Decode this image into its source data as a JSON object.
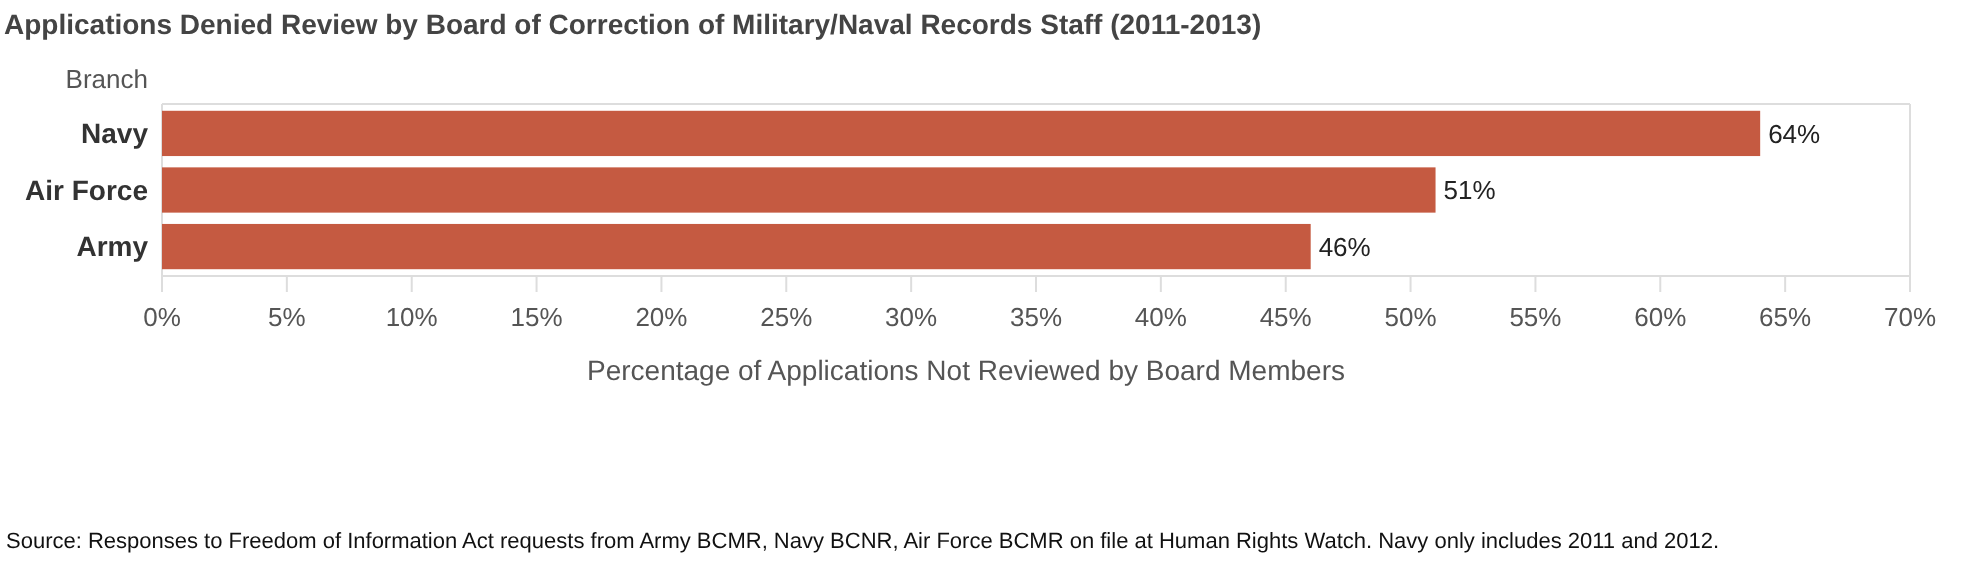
{
  "chart_data": {
    "type": "bar",
    "orientation": "horizontal",
    "title": "Applications Denied Review by Board of Correction of Military/Naval Records Staff (2011-2013)",
    "ylabel": "Branch",
    "xlabel": "Percentage of Applications Not Reviewed by Board Members",
    "categories": [
      "Navy",
      "Air Force",
      "Army"
    ],
    "series": [
      {
        "color": "#c55a41",
        "values": [
          64,
          51,
          46
        ],
        "value_labels": [
          "64%",
          "51%",
          "46%"
        ]
      }
    ],
    "xlim": [
      0,
      70
    ],
    "xticks": [
      {
        "value": 0,
        "label": "0%"
      },
      {
        "value": 5,
        "label": "5%"
      },
      {
        "value": 10,
        "label": "10%"
      },
      {
        "value": 15,
        "label": "15%"
      },
      {
        "value": 20,
        "label": "20%"
      },
      {
        "value": 25,
        "label": "25%"
      },
      {
        "value": 30,
        "label": "30%"
      },
      {
        "value": 35,
        "label": "35%"
      },
      {
        "value": 40,
        "label": "40%"
      },
      {
        "value": 45,
        "label": "45%"
      },
      {
        "value": 50,
        "label": "50%"
      },
      {
        "value": 55,
        "label": "55%"
      },
      {
        "value": 60,
        "label": "60%"
      },
      {
        "value": 65,
        "label": "65%"
      },
      {
        "value": 70,
        "label": "70%"
      }
    ],
    "grid": false,
    "annotations": [
      "Source: Responses to Freedom of Information Act requests from Army BCMR, Navy BCNR, Air Force BCMR on file at Human Rights Watch. Navy only includes 2011 and 2012."
    ]
  }
}
